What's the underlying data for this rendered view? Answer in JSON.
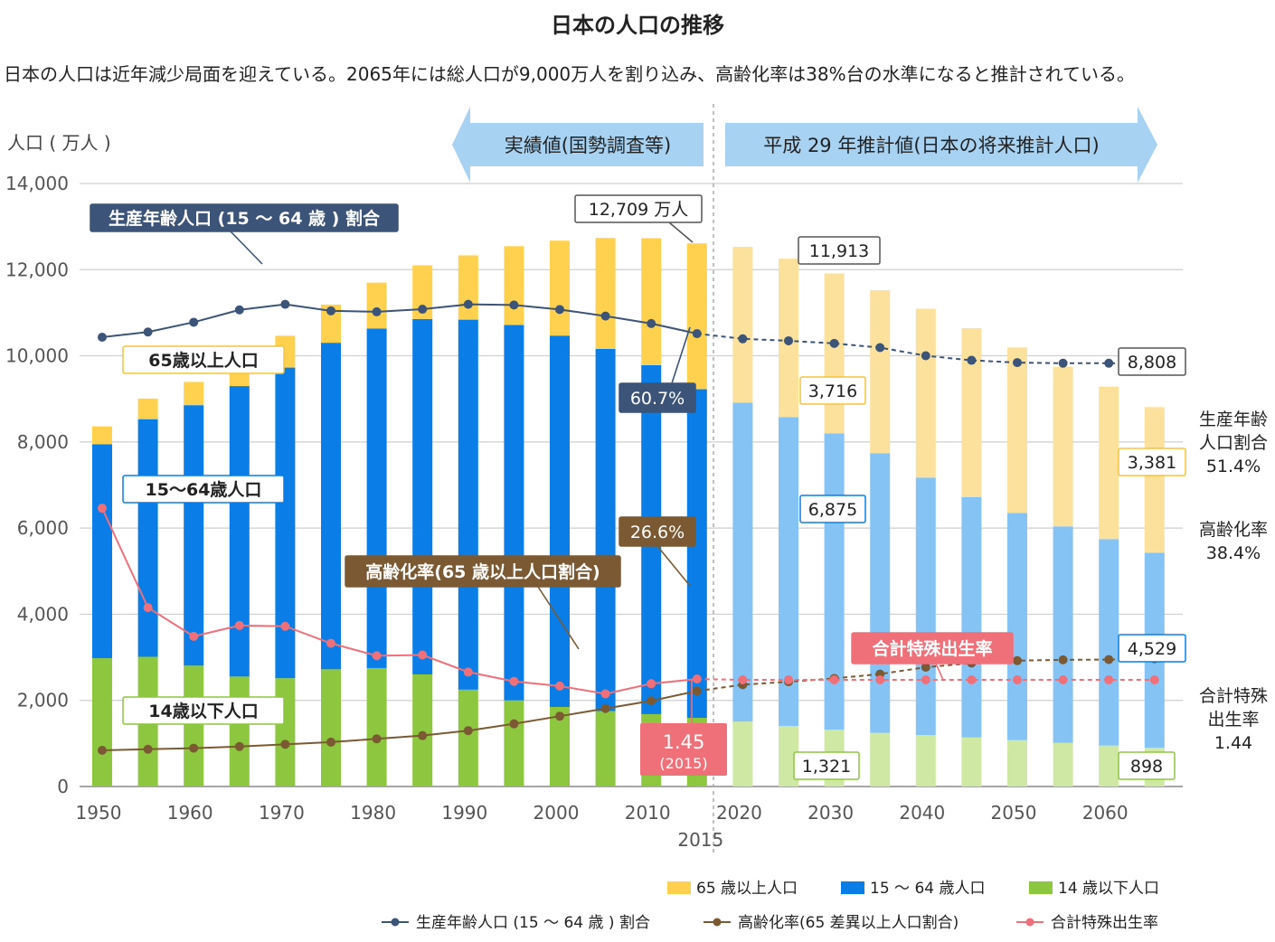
{
  "chart_data": {
    "type": "bar",
    "title": "日本の人口の推移",
    "subtitle": "日本の人口は近年減少局面を迎えている。2065年には総人口が9,000万人を割り込み、高齢化率は38%台の水準になると推計されている。",
    "ylabel": "人口 ( 万人 )",
    "ylim": [
      0,
      14000
    ],
    "yticks": [
      "0",
      "2,000",
      "4,000",
      "6,000",
      "8,000",
      "10,000",
      "12,000",
      "14,000"
    ],
    "xtick_labels": [
      "1950",
      "1960",
      "1970",
      "1980",
      "1990",
      "2000",
      "2010",
      "2020",
      "2030",
      "2040",
      "2050",
      "2060"
    ],
    "xtick_extra": "2015",
    "categories": [
      1950,
      1955,
      1960,
      1965,
      1970,
      1975,
      1980,
      1985,
      1990,
      1995,
      2000,
      2005,
      2010,
      2015,
      2020,
      2025,
      2030,
      2035,
      2040,
      2045,
      2050,
      2055,
      2060,
      2065
    ],
    "series": [
      {
        "name": "14 歳以下人口",
        "type": "bar",
        "stack": true,
        "color": "#8dc63f",
        "projection_color": "#cfe8a3",
        "values": [
          2979,
          3012,
          2807,
          2553,
          2515,
          2722,
          2751,
          2603,
          2249,
          2001,
          1847,
          1752,
          1680,
          1595,
          1507,
          1407,
          1321,
          1246,
          1194,
          1138,
          1077,
          1012,
          951,
          898
        ]
      },
      {
        "name": "15 ～ 64 歳人口",
        "type": "bar",
        "stack": true,
        "color": "#0a7ee6",
        "projection_color": "#85c3f5",
        "values": [
          4966,
          5517,
          6047,
          6744,
          7212,
          7581,
          7883,
          8251,
          8590,
          8716,
          8622,
          8409,
          8103,
          7629,
          7406,
          7170,
          6875,
          6494,
          5978,
          5584,
          5275,
          5028,
          4793,
          4529
        ]
      },
      {
        "name": "65 歳以上人口",
        "type": "bar",
        "stack": true,
        "color": "#ffd14f",
        "projection_color": "#fbe19c",
        "values": [
          416,
          479,
          540,
          624,
          739,
          887,
          1065,
          1247,
          1493,
          1828,
          2204,
          2576,
          2948,
          3387,
          3619,
          3677,
          3716,
          3782,
          3921,
          3919,
          3841,
          3704,
          3540,
          3381
        ]
      },
      {
        "name": "生産年齢人口 (15 ～ 64 歳 ) 割合",
        "type": "line",
        "color": "#3b5478",
        "values": [
          59.6,
          61.2,
          64.2,
          68.0,
          69.7,
          67.7,
          67.4,
          68.2,
          69.7,
          69.5,
          68.1,
          66.1,
          63.8,
          60.7,
          59.1,
          58.5,
          57.7,
          56.4,
          53.9,
          52.5,
          51.8,
          51.6,
          51.6,
          51.4
        ]
      },
      {
        "name": "高齢化率(65 差異以上人口割合)",
        "type": "line",
        "color": "#7b5a33",
        "values": [
          4.9,
          5.3,
          5.7,
          6.3,
          7.1,
          7.9,
          9.1,
          10.3,
          12.1,
          14.6,
          17.4,
          20.2,
          23.0,
          26.6,
          28.9,
          30.0,
          31.2,
          32.8,
          35.3,
          36.8,
          37.7,
          38.0,
          38.1,
          38.4
        ]
      },
      {
        "name": "合計特殊出生率",
        "type": "line",
        "color": "#f0707a",
        "values": [
          3.65,
          2.37,
          2.0,
          2.14,
          2.13,
          1.91,
          1.75,
          1.76,
          1.54,
          1.42,
          1.36,
          1.26,
          1.39,
          1.45,
          1.44,
          1.44,
          1.44,
          1.44,
          1.44,
          1.44,
          1.44,
          1.44,
          1.44,
          1.44
        ]
      }
    ],
    "period_labels": {
      "actual": "実績値(国勢調査等)",
      "projection": "平成 29 年推計値(日本の将来推計人口)"
    },
    "annotations": {
      "total_2015": "12,709 万人",
      "total_2030": "11,913",
      "total_2065": "8,808",
      "old_2030": "3,716",
      "old_2065": "3,381",
      "work_2030": "6,875",
      "work_2065": "4,529",
      "young_2030": "1,321",
      "young_2065": "898",
      "work_ratio_2015": "60.7%",
      "aging_2015": "26.6%",
      "fertility_2015": "1.45",
      "fertility_2015_year": "(2015)",
      "label_work_ratio": "生産年齢人口 (15 ～ 64 歳 ) 割合",
      "label_old": "65歳以上人口",
      "label_work": "15～64歳人口",
      "label_young": "14歳以下人口",
      "label_aging": "高齢化率(65 歳以上人口割合)",
      "label_fertility": "合計特殊出生率",
      "right_work_ratio": [
        "生産年齢",
        "人口割合",
        "51.4%"
      ],
      "right_aging": [
        "高齢化率",
        "38.4%"
      ],
      "right_fertility": [
        "合計特殊",
        "出生率",
        "1.44"
      ]
    },
    "legend": [
      "65 歳以上人口",
      "15 ～ 64 歳人口",
      "14 歳以下人口",
      "生産年齢人口 (15 ～ 64 歳 ) 割合",
      "高齢化率(65 差異以上人口割合)",
      "合計特殊出生率"
    ]
  }
}
